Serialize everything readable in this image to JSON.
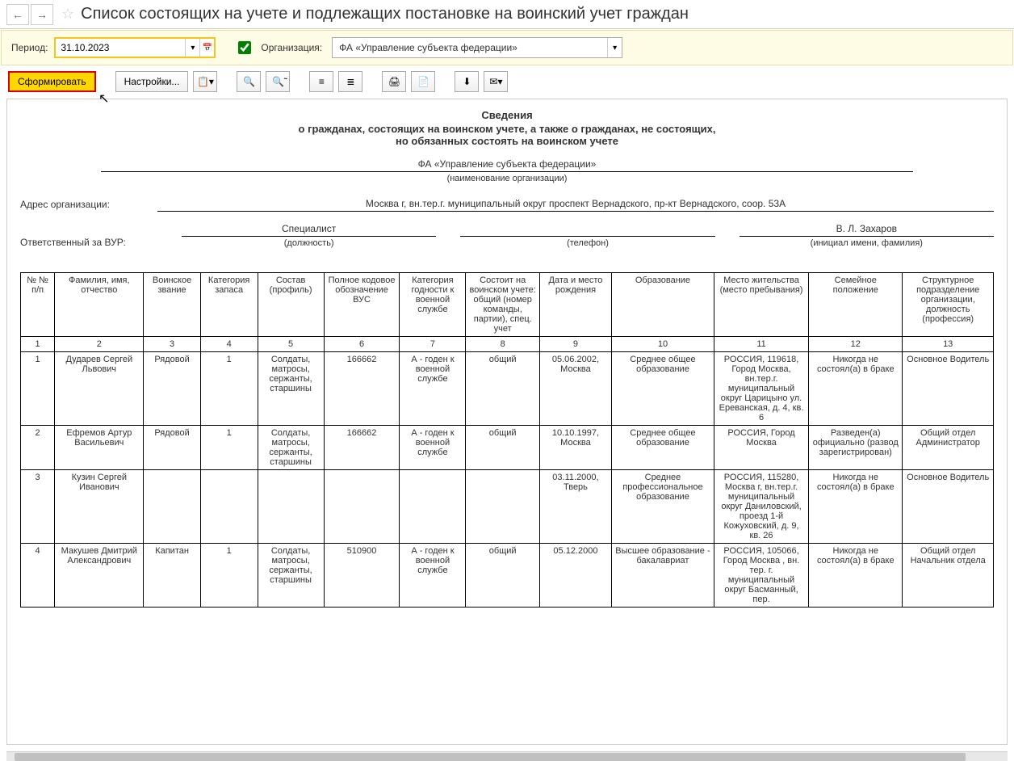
{
  "title": "Список состоящих на учете и подлежащих постановке на воинский учет граждан",
  "filter": {
    "period_label": "Период:",
    "period_value": "31.10.2023",
    "org_label": "Организация:",
    "org_value": "ФА «Управление субъекта федерации»"
  },
  "toolbar": {
    "form": "Сформировать",
    "settings": "Настройки..."
  },
  "report": {
    "t1": "Сведения",
    "t2": "о гражданах, состоящих на воинском учете, а также о гражданах, не состоящих,",
    "t3": "но обязанных состоять на воинском учете",
    "org_name": "ФА «Управление субъекта федерации»",
    "org_caption": "(наименование организации)",
    "addr_label": "Адрес организации:",
    "addr_value": "Москва г, вн.тер.г. муниципальный округ проспект Вернадского, пр-кт Вернадского, соор. 53А",
    "resp_label": "Ответственный за ВУР:",
    "resp_pos": "Специалист",
    "resp_pos_cap": "(должность)",
    "resp_tel": "",
    "resp_tel_cap": "(телефон)",
    "resp_name": "В. Л. Захаров",
    "resp_name_cap": "(инициал имени, фамилия)"
  },
  "headers": [
    "№ № п/п",
    "Фамилия, имя, отчество",
    "Воинское звание",
    "Категория запаса",
    "Состав (профиль)",
    "Полное кодовое обозначение ВУС",
    "Категория годности к военной службе",
    "Состоит на воинском учете: общий (номер команды, партии), спец. учет",
    "Дата и место рождения",
    "Образование",
    "Место жительства (место пребывания)",
    "Семейное положение",
    "Структурное подразделение организации, должность (профессия)"
  ],
  "numrow": [
    "1",
    "2",
    "3",
    "4",
    "5",
    "6",
    "7",
    "8",
    "9",
    "10",
    "11",
    "12",
    "13"
  ],
  "rows": [
    {
      "n": "1",
      "fio": "Дударев Сергей Львович",
      "rank": "Рядовой",
      "cat": "1",
      "sostav": "Солдаты, матросы, сержанты, старшины",
      "vus": "166662",
      "godn": "А - годен к военной службе",
      "uchet": "общий",
      "birth": "05.06.2002, Москва",
      "edu": "Среднее общее образование",
      "addr": "РОССИЯ, 119618, Город Москва, вн.тер.г. муниципальный округ Царицыно ул. Ереванская, д. 4, кв. 6",
      "fam": "Никогда не состоял(а) в браке",
      "dept": "Основное Водитель"
    },
    {
      "n": "2",
      "fio": "Ефремов Артур Васильевич",
      "rank": "Рядовой",
      "cat": "1",
      "sostav": "Солдаты, матросы, сержанты, старшины",
      "vus": "166662",
      "godn": "А - годен к военной службе",
      "uchet": "общий",
      "birth": "10.10.1997, Москва",
      "edu": "Среднее общее образование",
      "addr": "РОССИЯ, Город Москва",
      "fam": "Разведен(а) официально (развод зарегистрирован)",
      "dept": "Общий отдел Администратор"
    },
    {
      "n": "3",
      "fio": "Кузин Сергей Иванович",
      "rank": "",
      "cat": "",
      "sostav": "",
      "vus": "",
      "godn": "",
      "uchet": "",
      "birth": "03.11.2000, Тверь",
      "edu": "Среднее профессиональное образование",
      "addr": "РОССИЯ, 115280, Москва г, вн.тер.г. муниципальный округ Даниловский, проезд 1-й Кожуховский, д. 9, кв. 26",
      "fam": "Никогда не состоял(а) в браке",
      "dept": "Основное Водитель"
    },
    {
      "n": "4",
      "fio": "Макушев Дмитрий Александрович",
      "rank": "Капитан",
      "cat": "1",
      "sostav": "Солдаты, матросы, сержанты, старшины",
      "vus": "510900",
      "godn": "А - годен к военной службе",
      "uchet": "общий",
      "birth": "05.12.2000",
      "edu": "Высшее образование - бакалавриат",
      "addr": "РОССИЯ, 105066, Город Москва , вн. тер. г. муниципальный округ Басманный, пер.",
      "fam": "Никогда не состоял(а) в браке",
      "dept": "Общий отдел Начальник отдела"
    }
  ]
}
